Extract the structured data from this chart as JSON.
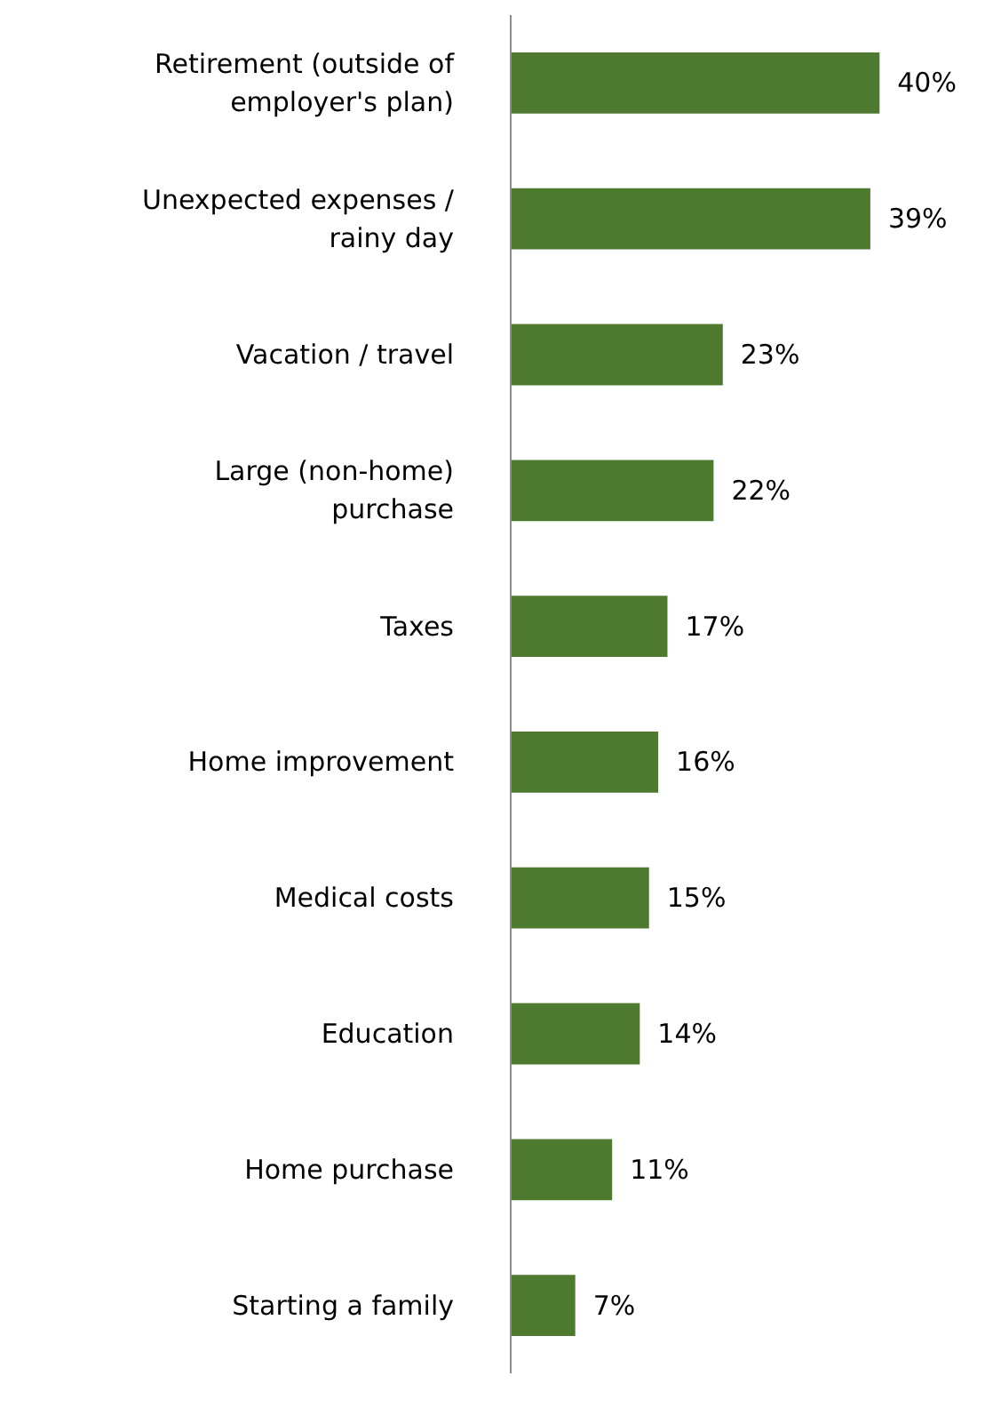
{
  "chart_data": {
    "type": "bar",
    "orientation": "horizontal",
    "categories": [
      "Retirement (outside of employer's plan)",
      "Unexpected expenses / rainy day",
      "Vacation / travel",
      "Large (non-home) purchase",
      "Taxes",
      "Home improvement",
      "Medical costs",
      "Education",
      "Home purchase",
      "Starting a family"
    ],
    "values": [
      40,
      39,
      23,
      22,
      17,
      16,
      15,
      14,
      11,
      7
    ],
    "value_labels": [
      "40%",
      "39%",
      "23%",
      "22%",
      "17%",
      "16%",
      "15%",
      "14%",
      "11%",
      "7%"
    ],
    "color": "#4e7a2f",
    "grid": false
  }
}
